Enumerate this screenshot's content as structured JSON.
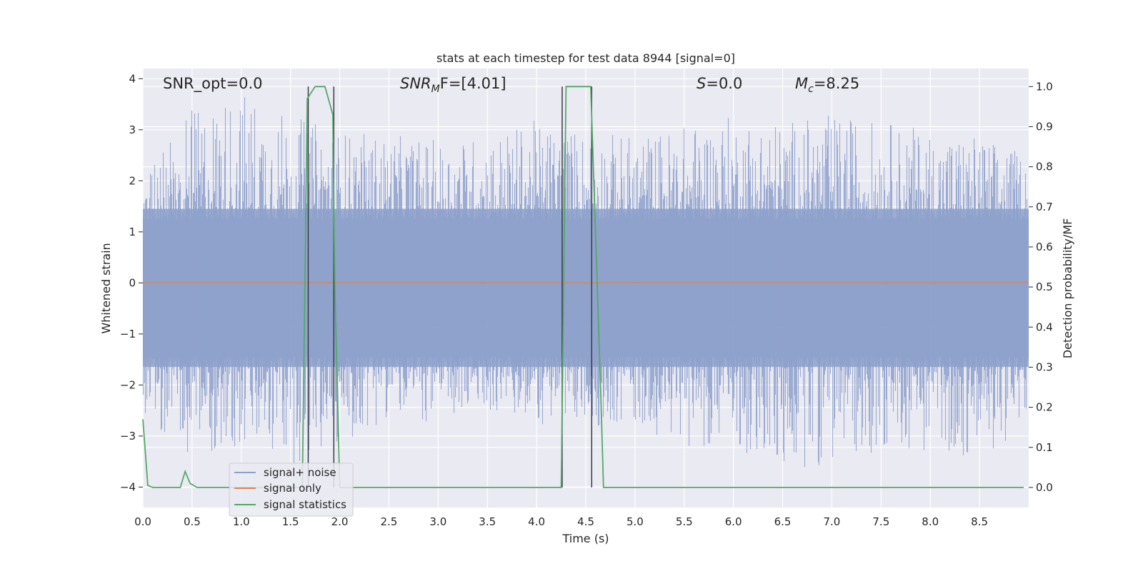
{
  "chart_data": {
    "type": "line",
    "title": "stats at each timestep for test data 8944 [signal=0]",
    "xlabel": "Time (s)",
    "ylabel": "Whitened strain",
    "ylabel_right": "Detection probability/MF",
    "xlim": [
      0.0,
      9.0
    ],
    "ylim": [
      -4.4,
      4.2
    ],
    "ylim_right": [
      -0.05,
      1.045
    ],
    "x_ticks": [
      "0.0",
      "0.5",
      "1.0",
      "1.5",
      "2.0",
      "2.5",
      "3.0",
      "3.5",
      "4.0",
      "4.5",
      "5.0",
      "5.5",
      "6.0",
      "6.5",
      "7.0",
      "7.5",
      "8.0",
      "8.5"
    ],
    "y_ticks": [
      "−4",
      "−3",
      "−2",
      "−1",
      "0",
      "1",
      "2",
      "3",
      "4"
    ],
    "y_ticks_right": [
      "0.0",
      "0.1",
      "0.2",
      "0.3",
      "0.4",
      "0.5",
      "0.6",
      "0.7",
      "0.8",
      "0.9",
      "1.0"
    ],
    "grid": true,
    "legend_position": "lower left",
    "annotations": {
      "snr_opt": "SNR_opt=0.0",
      "snr_mf_main": "SNR",
      "snr_mf_sub": "M",
      "snr_mf_rest": "F=[4.01]",
      "s_main": "S",
      "s_rest": "=0.0",
      "mc_main": "M",
      "mc_sub": "c",
      "mc_rest": "=8.25"
    },
    "series": [
      {
        "name": "signal+ noise",
        "color": "#8da0cb",
        "description_type": "whitened noise band",
        "envelope": {
          "x": [
            0.0,
            0.5,
            1.0,
            1.5,
            2.0,
            2.5,
            3.0,
            3.5,
            4.0,
            4.5,
            5.0,
            5.5,
            6.0,
            6.5,
            7.0,
            7.5,
            8.0,
            8.5,
            9.0
          ],
          "upper": [
            2.1,
            3.4,
            3.8,
            3.3,
            3.0,
            2.9,
            2.8,
            2.9,
            3.2,
            3.0,
            2.9,
            3.1,
            3.3,
            3.2,
            3.3,
            3.2,
            3.0,
            2.9,
            2.5
          ],
          "lower": [
            -2.7,
            -3.4,
            -3.3,
            -3.6,
            -3.3,
            -2.6,
            -2.8,
            -2.5,
            -2.8,
            -2.8,
            -2.8,
            -3.2,
            -3.2,
            -3.8,
            -3.5,
            -3.3,
            -3.3,
            -3.5,
            -2.8
          ]
        }
      },
      {
        "name": "signal only",
        "color": "#dd8452",
        "x": [
          0.0,
          9.0
        ],
        "y": [
          0.0,
          0.0
        ]
      },
      {
        "name": "signal statistics",
        "color": "#55a868",
        "axis": "right",
        "x": [
          0.0,
          0.05,
          0.1,
          0.38,
          0.43,
          0.48,
          0.55,
          1.62,
          1.67,
          1.75,
          1.85,
          1.93,
          1.95,
          2.0,
          2.05,
          4.25,
          4.3,
          4.55,
          4.65,
          4.68,
          8.95
        ],
        "y": [
          0.17,
          0.005,
          0.0,
          0.0,
          0.04,
          0.01,
          0.0,
          0.0,
          0.97,
          1.0,
          1.0,
          0.93,
          0.5,
          0.0,
          0.0,
          0.0,
          1.0,
          1.0,
          0.25,
          0.0,
          0.0
        ]
      }
    ],
    "vertical_markers": {
      "color": "#3a3a4a",
      "x": [
        1.68,
        1.94,
        4.26,
        4.56
      ]
    }
  }
}
